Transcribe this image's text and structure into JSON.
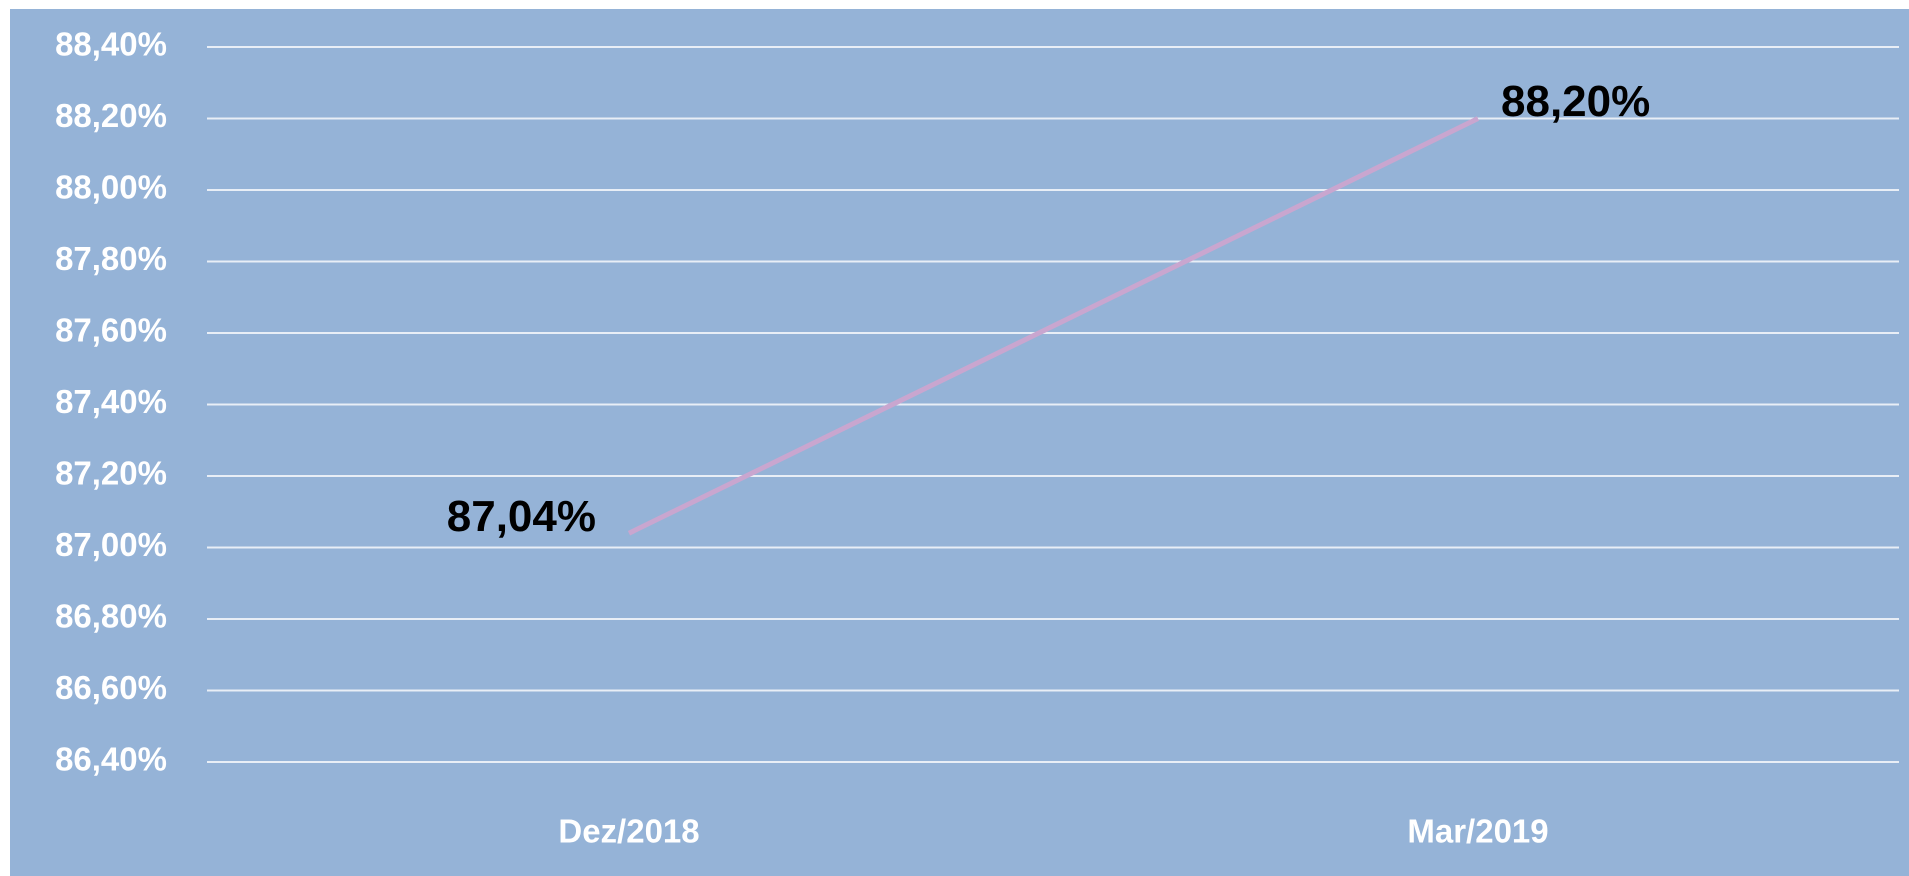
{
  "chart_data": {
    "type": "line",
    "categories": [
      "Dez/2018",
      "Mar/2019"
    ],
    "series": [
      {
        "name": null,
        "color": "#c9a6cf",
        "values": [
          87.04,
          88.2
        ],
        "value_labels": [
          "87,04%",
          "88,20%"
        ]
      }
    ],
    "ylim": [
      86.4,
      88.4
    ],
    "yticks": [
      {
        "value": 86.4,
        "label": "86,40%"
      },
      {
        "value": 86.6,
        "label": "86,60%"
      },
      {
        "value": 86.8,
        "label": "86,80%"
      },
      {
        "value": 87.0,
        "label": "87,00%"
      },
      {
        "value": 87.2,
        "label": "87,20%"
      },
      {
        "value": 87.4,
        "label": "87,40%"
      },
      {
        "value": 87.6,
        "label": "87,60%"
      },
      {
        "value": 87.8,
        "label": "87,80%"
      },
      {
        "value": 88.0,
        "label": "88,00%"
      },
      {
        "value": 88.2,
        "label": "88,20%"
      },
      {
        "value": 88.4,
        "label": "88,40%"
      }
    ],
    "grid": true,
    "background": "#95b3d7"
  }
}
